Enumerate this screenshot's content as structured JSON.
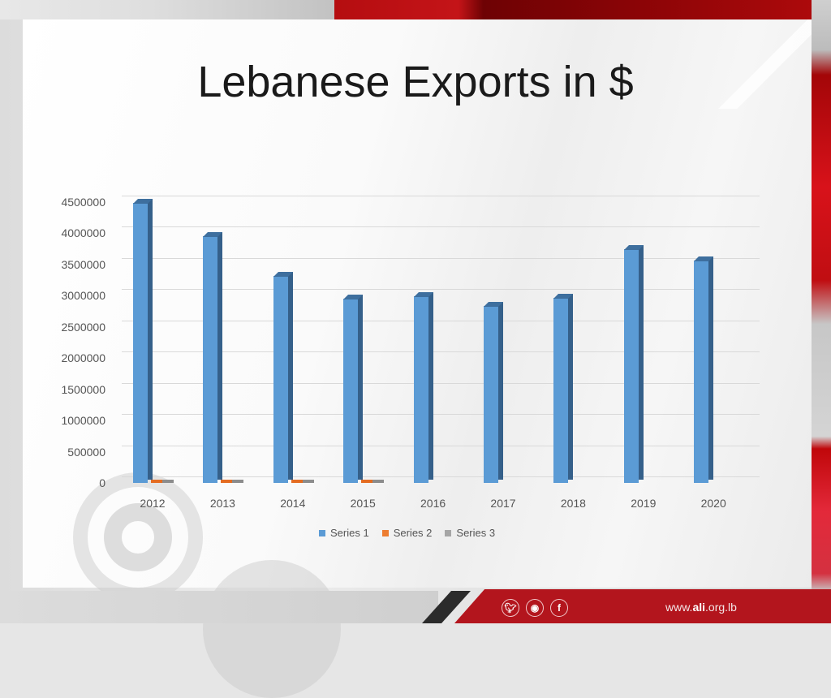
{
  "slide": {
    "title": "Lebanese Exports in $",
    "footer": {
      "site_prefix": "www.",
      "site_bold": "ali",
      "site_suffix": ".org.lb",
      "social_icons": [
        "twitter-icon",
        "instagram-icon",
        "facebook-icon"
      ]
    },
    "colors": {
      "brand_red": "#b3151d",
      "series1": "#5b9bd5",
      "series2": "#ed7d31",
      "series3": "#a5a5a5"
    }
  },
  "chart_data": {
    "type": "bar",
    "title": "Lebanese Exports in $",
    "xlabel": "",
    "ylabel": "",
    "categories": [
      "2012",
      "2013",
      "2014",
      "2015",
      "2016",
      "2017",
      "2018",
      "2019",
      "2020"
    ],
    "series": [
      {
        "name": "Series 1",
        "values": [
          4490000,
          3950000,
          3310000,
          2950000,
          2990000,
          2840000,
          2960000,
          3740000,
          3560000
        ]
      },
      {
        "name": "Series 2",
        "values": [
          0,
          0,
          0,
          0,
          null,
          null,
          null,
          null,
          null
        ]
      },
      {
        "name": "Series 3",
        "values": [
          0,
          0,
          0,
          0,
          null,
          null,
          null,
          null,
          null
        ]
      }
    ],
    "ylim": [
      0,
      4500000
    ],
    "yticks": [
      "0",
      "500000",
      "1000000",
      "1500000",
      "2000000",
      "2500000",
      "3000000",
      "3500000",
      "4000000",
      "4500000"
    ],
    "grid": true,
    "legend_position": "bottom",
    "style": "3d-clustered-column"
  }
}
